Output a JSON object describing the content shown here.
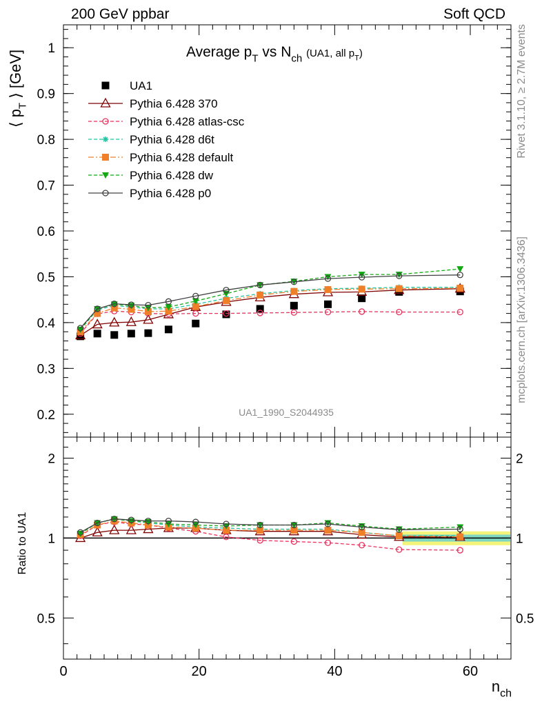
{
  "header": {
    "left": "200 GeV ppbar",
    "right": "Soft QCD"
  },
  "side_text": {
    "top": "Rivet 3.1.10, ≥ 2.7M events",
    "bottom": "mcplots.cern.ch [arXiv:1306.3436]"
  },
  "watermark": "UA1_1990_S2044935",
  "chart_data": [
    {
      "type": "line",
      "panel": "main",
      "title": "Average p_T vs N_ch (UA1, all p_T)",
      "xlabel": "n_ch",
      "ylabel": "⟨ p_T ⟩ [GeV]",
      "xlim": [
        0,
        66
      ],
      "ylim": [
        0.15,
        1.05
      ],
      "y_ticks": [
        0.2,
        0.3,
        0.4,
        0.5,
        0.6,
        0.7,
        0.8,
        0.9,
        1
      ],
      "y_tick_labels": [
        "0.2",
        "0.3",
        "0.4",
        "0.5",
        "0.6",
        "0.7",
        "0.8",
        "0.9",
        "1"
      ],
      "legend_position": "top-left",
      "x": [
        2.5,
        5,
        7.5,
        10,
        12.5,
        15.5,
        19.5,
        24,
        29,
        34,
        39,
        44,
        49.5,
        58.5
      ],
      "series": [
        {
          "name": "UA1",
          "color": "#000000",
          "marker": "filled-square",
          "line": "none",
          "values": [
            0.37,
            0.376,
            0.373,
            0.376,
            0.377,
            0.385,
            0.398,
            0.418,
            0.43,
            0.437,
            0.44,
            0.453,
            0.467,
            0.468
          ]
        },
        {
          "name": "Pythia 6.428 370",
          "color": "#800000",
          "marker": "open-triangle",
          "line": "solid",
          "values": [
            0.372,
            0.396,
            0.4,
            0.401,
            0.406,
            0.418,
            0.434,
            0.445,
            0.455,
            0.462,
            0.466,
            0.467,
            0.471,
            0.474
          ]
        },
        {
          "name": "Pythia 6.428 atlas-csc",
          "color": "#e8305c",
          "marker": "open-circle",
          "line": "dashed",
          "values": [
            0.376,
            0.419,
            0.425,
            0.423,
            0.42,
            0.419,
            0.42,
            0.42,
            0.421,
            0.422,
            0.423,
            0.424,
            0.423,
            0.423
          ]
        },
        {
          "name": "Pythia 6.428 d6t",
          "color": "#20c4a0",
          "marker": "star",
          "line": "dashed",
          "values": [
            0.385,
            0.428,
            0.437,
            0.434,
            0.43,
            0.43,
            0.44,
            0.453,
            0.463,
            0.47,
            0.474,
            0.475,
            0.477,
            0.477
          ]
        },
        {
          "name": "Pythia 6.428 default",
          "color": "#f07f2a",
          "marker": "filled-square",
          "line": "dashdot",
          "values": [
            0.38,
            0.42,
            0.432,
            0.429,
            0.424,
            0.425,
            0.435,
            0.448,
            0.46,
            0.468,
            0.472,
            0.473,
            0.474,
            0.475
          ]
        },
        {
          "name": "Pythia 6.428 dw",
          "color": "#12a812",
          "marker": "filled-triangle-down",
          "line": "dashed",
          "values": [
            0.385,
            0.43,
            0.44,
            0.437,
            0.432,
            0.434,
            0.447,
            0.463,
            0.482,
            0.49,
            0.5,
            0.505,
            0.505,
            0.517
          ]
        },
        {
          "name": "Pythia 6.428 p0",
          "color": "#404040",
          "marker": "open-circle",
          "line": "solid",
          "values": [
            0.388,
            0.43,
            0.441,
            0.439,
            0.438,
            0.446,
            0.458,
            0.471,
            0.482,
            0.489,
            0.496,
            0.499,
            0.502,
            0.504
          ]
        }
      ]
    },
    {
      "type": "line",
      "panel": "ratio",
      "xlabel": "n_ch",
      "ylabel": "Ratio to UA1",
      "xlim": [
        0,
        66
      ],
      "ylim": [
        0.35,
        2.4
      ],
      "y_scale": "log",
      "y_ticks": [
        0.5,
        1,
        2
      ],
      "y_tick_labels": [
        "0.5",
        "1",
        "2"
      ],
      "x_ticks": [
        0,
        20,
        40,
        60
      ],
      "x_tick_labels": [
        "0",
        "20",
        "40",
        "60"
      ],
      "x": [
        2.5,
        5,
        7.5,
        10,
        12.5,
        15.5,
        19.5,
        24,
        29,
        34,
        39,
        44,
        49.5,
        58.5
      ],
      "uncertainty_band": {
        "x_from": 50,
        "x_to": 66,
        "inner": 0.03,
        "outer": 0.06,
        "inner_color": "#7fd7c3",
        "outer_color": "#f4f47a"
      },
      "series": [
        {
          "name": "Pythia 6.428 370",
          "color": "#800000",
          "marker": "open-triangle",
          "line": "solid",
          "values": [
            1.0,
            1.05,
            1.07,
            1.07,
            1.08,
            1.09,
            1.09,
            1.07,
            1.06,
            1.06,
            1.06,
            1.03,
            1.01,
            1.01
          ]
        },
        {
          "name": "Pythia 6.428 atlas-csc",
          "color": "#e8305c",
          "marker": "open-circle",
          "line": "dashed",
          "values": [
            1.02,
            1.12,
            1.15,
            1.13,
            1.12,
            1.09,
            1.06,
            1.01,
            0.98,
            0.97,
            0.96,
            0.94,
            0.905,
            0.9
          ]
        },
        {
          "name": "Pythia 6.428 d6t",
          "color": "#20c4a0",
          "marker": "star",
          "line": "dashed",
          "values": [
            1.04,
            1.14,
            1.18,
            1.16,
            1.14,
            1.12,
            1.1,
            1.09,
            1.08,
            1.08,
            1.08,
            1.05,
            1.02,
            1.02
          ]
        },
        {
          "name": "Pythia 6.428 default",
          "color": "#f07f2a",
          "marker": "filled-square",
          "line": "dashdot",
          "values": [
            1.03,
            1.12,
            1.16,
            1.14,
            1.12,
            1.1,
            1.09,
            1.07,
            1.07,
            1.07,
            1.07,
            1.05,
            1.02,
            1.01
          ]
        },
        {
          "name": "Pythia 6.428 dw",
          "color": "#12a812",
          "marker": "filled-triangle-down",
          "line": "dashed",
          "values": [
            1.04,
            1.14,
            1.18,
            1.16,
            1.15,
            1.13,
            1.12,
            1.11,
            1.12,
            1.12,
            1.14,
            1.11,
            1.08,
            1.1
          ]
        },
        {
          "name": "Pythia 6.428 p0",
          "color": "#404040",
          "marker": "open-circle",
          "line": "solid",
          "values": [
            1.05,
            1.14,
            1.18,
            1.17,
            1.16,
            1.16,
            1.15,
            1.13,
            1.12,
            1.12,
            1.13,
            1.1,
            1.075,
            1.08
          ]
        }
      ]
    }
  ]
}
